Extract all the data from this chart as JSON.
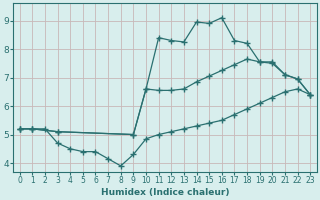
{
  "title": "",
  "xlabel": "Humidex (Indice chaleur)",
  "ylabel": "",
  "bg_color": "#d8eeed",
  "line_color": "#2a7070",
  "grid_color": "#c8b8b8",
  "xlim": [
    -0.5,
    23.5
  ],
  "ylim": [
    3.7,
    9.6
  ],
  "xticks": [
    0,
    1,
    2,
    3,
    4,
    5,
    6,
    7,
    8,
    9,
    10,
    11,
    12,
    13,
    14,
    15,
    16,
    17,
    18,
    19,
    20,
    21,
    22,
    23
  ],
  "yticks": [
    4,
    5,
    6,
    7,
    8,
    9
  ],
  "line1_x": [
    0,
    1,
    2,
    3,
    4,
    5,
    6,
    7,
    8,
    9,
    10,
    11,
    12,
    13,
    14,
    15,
    16,
    17,
    18,
    19,
    20,
    21,
    22,
    23
  ],
  "line1_y": [
    5.2,
    5.2,
    5.2,
    4.7,
    4.5,
    4.4,
    4.4,
    4.15,
    3.9,
    4.3,
    4.85,
    5.0,
    5.1,
    5.2,
    5.3,
    5.4,
    5.5,
    5.7,
    5.9,
    6.1,
    6.3,
    6.5,
    6.6,
    6.4
  ],
  "line2_x": [
    0,
    1,
    3,
    9,
    10,
    11,
    12,
    13,
    14,
    15,
    16,
    17,
    18,
    19,
    20,
    21,
    22,
    23
  ],
  "line2_y": [
    5.2,
    5.2,
    5.1,
    5.0,
    6.6,
    8.4,
    8.3,
    8.25,
    8.95,
    8.9,
    9.1,
    8.3,
    8.2,
    7.55,
    7.5,
    7.1,
    6.95,
    6.4
  ],
  "line3_x": [
    0,
    1,
    3,
    9,
    10,
    11,
    12,
    13,
    14,
    15,
    16,
    17,
    18,
    19,
    20,
    21,
    22,
    23
  ],
  "line3_y": [
    5.2,
    5.2,
    5.1,
    5.0,
    6.6,
    6.55,
    6.55,
    6.6,
    6.85,
    7.05,
    7.25,
    7.45,
    7.65,
    7.55,
    7.55,
    7.1,
    6.95,
    6.4
  ]
}
